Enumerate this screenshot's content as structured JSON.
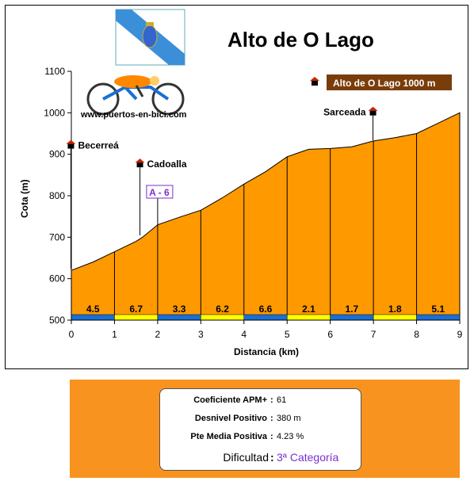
{
  "chart_data": {
    "type": "area",
    "title": "Alto de O Lago",
    "xlabel": "Distancia (km)",
    "ylabel": "Cota (m)",
    "xlim": [
      0,
      9
    ],
    "ylim": [
      500,
      1100
    ],
    "x_ticks": [
      "0",
      "1",
      "2",
      "3",
      "4",
      "5",
      "6",
      "7",
      "8",
      "9"
    ],
    "y_ticks": [
      "500",
      "600",
      "700",
      "800",
      "900",
      "1000",
      "1100"
    ],
    "profile": {
      "x": [
        0,
        0.5,
        1,
        1.5,
        1.65,
        2,
        2.5,
        3,
        3.5,
        4,
        4.5,
        5,
        5.5,
        6,
        6.5,
        7,
        7.5,
        8,
        8.5,
        9
      ],
      "y": [
        620,
        640,
        665,
        690,
        700,
        730,
        748,
        765,
        795,
        828,
        858,
        894,
        912,
        914,
        918,
        932,
        940,
        950,
        975,
        1000
      ]
    },
    "segments": [
      {
        "label": "4.5",
        "color": "#1a6fd4"
      },
      {
        "label": "6.7",
        "color": "#ffff00"
      },
      {
        "label": "3.3",
        "color": "#1a6fd4"
      },
      {
        "label": "6.2",
        "color": "#ffff00"
      },
      {
        "label": "6.6",
        "color": "#1a6fd4"
      },
      {
        "label": "2.1",
        "color": "#ffff00"
      },
      {
        "label": "1.7",
        "color": "#1a6fd4"
      },
      {
        "label": "1.8",
        "color": "#ffff00"
      },
      {
        "label": "5.1",
        "color": "#1a6fd4"
      }
    ],
    "places": [
      {
        "label": "Becerreá",
        "x": 0.1,
        "y": 925
      },
      {
        "label": "Cadoalla",
        "x": 1.7,
        "y": 880
      },
      {
        "label": "Sarceada",
        "x": 7.1,
        "y": 1005
      }
    ],
    "summit": {
      "label": "Alto de O Lago 1000 m"
    },
    "road": {
      "label": "A - 6",
      "x": 2.0
    },
    "watermark": "www.puertos-en-bici.com",
    "colors": {
      "fill": "#ff9900",
      "summit_box": "#7a3d0a",
      "road_label": "#7b2fd0"
    },
    "grid": false
  },
  "stats": {
    "coef_label": "Coeficiente APM+",
    "coef_value": "61",
    "desnivel_label": "Desnivel Positivo",
    "desnivel_value": "380 m",
    "pte_label": "Pte Media Positiva",
    "pte_value": "4.23 %",
    "dif_label": "Dificultad",
    "dif_value": "3ª Categoría",
    "separator": ":"
  }
}
